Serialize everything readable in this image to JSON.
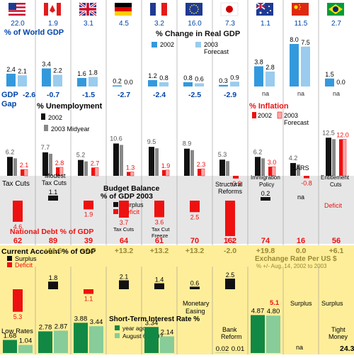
{
  "flags": [
    {
      "country": "United States",
      "icon": "us-flag-icon"
    },
    {
      "country": "Canada",
      "icon": "canada-flag-icon"
    },
    {
      "country": "United Kingdom",
      "icon": "uk-flag-icon"
    },
    {
      "country": "Germany",
      "icon": "germany-flag-icon"
    },
    {
      "country": "France",
      "icon": "france-flag-icon"
    },
    {
      "country": "Euro Area",
      "icon": "eu-flag-icon"
    },
    {
      "country": "Japan",
      "icon": "japan-flag-icon"
    },
    {
      "country": "Australia",
      "icon": "australia-flag-icon"
    },
    {
      "country": "China",
      "icon": "china-flag-icon"
    },
    {
      "country": "Brazil",
      "icon": "brazil-flag-icon"
    }
  ],
  "colors": {
    "blue_dark": "#3399dd",
    "blue_light": "#99ccee",
    "black": "#111111",
    "gray": "#888888",
    "red_dark": "#ee1111",
    "red_light": "#ffaaaa",
    "green_dark": "#118844",
    "green_light": "#88cc99",
    "yellow_bg": "#ffee99",
    "gray_bg": "#e6e6e6",
    "label_blue": "#0044aa",
    "label_red": "#ee1111",
    "label_olive": "#998833"
  },
  "chart_data": [
    {
      "type": "bar",
      "title": "% of World GDP",
      "categories": [
        "United States",
        "Canada",
        "United Kingdom",
        "Germany",
        "France",
        "Euro Area",
        "Japan",
        "Australia",
        "China",
        "Brazil"
      ],
      "values": [
        22.0,
        1.9,
        3.1,
        4.5,
        3.2,
        16.0,
        7.3,
        1.1,
        11.5,
        2.7
      ],
      "labels": [
        "22.0",
        "1.9",
        "3.1",
        "4.5",
        "3.2",
        "16.0",
        "7.3",
        "1.1",
        "11.5",
        "2.7"
      ]
    },
    {
      "type": "bar",
      "title": "% Change in Real GDP",
      "legend": [
        "2002",
        "2003 Forecast"
      ],
      "series": [
        {
          "name": "2002",
          "values": [
            2.4,
            3.4,
            1.6,
            0.2,
            1.2,
            0.8,
            0.3,
            3.8,
            8.0,
            1.5
          ],
          "labels": [
            "2.4",
            "3.4",
            "1.6",
            "0.2",
            "1.2",
            "0.8",
            "0.3",
            "3.8",
            "8.0",
            "1.5"
          ]
        },
        {
          "name": "2003 Forecast",
          "values": [
            2.1,
            2.2,
            1.8,
            0.0,
            0.8,
            0.6,
            0.9,
            2.8,
            7.5,
            0.0
          ],
          "labels": [
            "2.1",
            "2.2",
            "1.8",
            "0.0",
            "0.8",
            "0.6",
            "0.9",
            "2.8",
            "7.5",
            "0.0"
          ]
        }
      ]
    },
    {
      "type": "table",
      "title": "GDP Gap",
      "title_line1": "GDP",
      "title_line2": "Gap",
      "values": [
        "-2.6",
        "-0.7",
        "-1.5",
        "-2.7",
        "-2.4",
        "-2.5",
        "-2.9",
        "na",
        "na",
        "na"
      ]
    },
    {
      "type": "bar",
      "title": "% Unemployment",
      "legend": [
        "2002",
        "2003 Midyear"
      ],
      "series": [
        {
          "name": "2002",
          "values": [
            6.2,
            7.7,
            5.2,
            10.6,
            9.5,
            8.9,
            5.3,
            6.2,
            4.2,
            12.5
          ],
          "labels": [
            "6.2",
            "7.7",
            "5.2",
            "10.6",
            "9.5",
            "8.9",
            "5.3",
            "6.2",
            "4.2",
            "12.5"
          ]
        },
        {
          "name": "2003 Midyear",
          "values": [
            null,
            null,
            null,
            null,
            null,
            null,
            null,
            null,
            null,
            null
          ]
        }
      ]
    },
    {
      "type": "bar",
      "title": "% Inflation",
      "legend": [
        "2002",
        "2003 Forecast"
      ],
      "series": [
        {
          "name": "2002",
          "values": [
            null,
            null,
            null,
            null,
            null,
            null,
            -0.9,
            null,
            -0.8,
            null
          ]
        },
        {
          "name": "2003 Forecast",
          "values": [
            2.1,
            2.8,
            2.7,
            1.3,
            1.9,
            2.3,
            null,
            3.0,
            null,
            12.0
          ],
          "labels": [
            "2.1",
            "2.8",
            "2.7",
            "1.3",
            "1.9",
            "2.3",
            "-0.9",
            "3.0",
            "-0.8",
            "12.0"
          ]
        }
      ]
    },
    {
      "type": "bar",
      "title": "Budget Balance % of GDP 2003",
      "legend": [
        "Surplus",
        "Deficit"
      ],
      "values": [
        -4.6,
        1.1,
        -1.9,
        -3.7,
        -3.6,
        -2.5,
        -7.7,
        0.2,
        null,
        null
      ],
      "labels": [
        "4.6",
        "1.1",
        "1.9",
        "3.7",
        "3.6",
        "2.5",
        "7.7",
        "0.2",
        "na",
        "Deficit"
      ],
      "notes": [
        "Tax Cuts",
        "Modest Tax Cuts",
        "",
        "Tax Cuts",
        "Tax Cut Freeze",
        "",
        "Structural Reforms",
        "Immigration Policy",
        "SARS",
        "Entitlement Cuts"
      ]
    },
    {
      "type": "table",
      "title": "National Debt % of GDP",
      "values": [
        "62",
        "89",
        "39",
        "64",
        "61",
        "70",
        "162",
        "74",
        "16",
        "56"
      ]
    },
    {
      "type": "bar",
      "title": "Current Account % of GDP",
      "legend": [
        "Surplus",
        "Deficit"
      ],
      "values": [
        -5.3,
        1.8,
        -1.1,
        2.1,
        1.4,
        0.6,
        2.5,
        null,
        null,
        null
      ],
      "labels": [
        "5.3",
        "1.8",
        "1.1",
        "2.1",
        "1.4",
        "0.6",
        "2.5",
        "",
        "",
        ""
      ]
    },
    {
      "type": "table",
      "title": "Exchange Rate Per US $",
      "subtitle": "% +/- Aug. 14, 2002 to 2003",
      "values": [
        "",
        "+11.6",
        "+3.7",
        "+13.2",
        "+13.2",
        "+13.2",
        "-2.0",
        "+19.8",
        "0.0",
        "+6.1"
      ]
    },
    {
      "type": "bar",
      "title": "Short-Term Interest Rate %",
      "legend": [
        "year ago",
        "August 6, 2003"
      ],
      "series": [
        {
          "name": "year ago",
          "values": [
            1.68,
            2.78,
            3.88,
            null,
            3.34,
            null,
            0.02,
            4.87,
            null,
            null
          ],
          "labels": [
            "1.68",
            "2.78",
            "3.88",
            "",
            "3.34",
            "",
            "0.02",
            "4.87",
            "",
            ""
          ]
        },
        {
          "name": "August 6, 2003",
          "values": [
            1.04,
            2.87,
            3.44,
            null,
            2.14,
            null,
            0.01,
            4.8,
            null,
            24.3
          ],
          "labels": [
            "1.04",
            "2.87",
            "3.44",
            "",
            "2.14",
            "",
            "0.01",
            "4.80",
            "",
            "24.3"
          ]
        }
      ],
      "value_labels": [
        "5.1"
      ],
      "notes": [
        "Low Rates",
        "",
        "",
        "",
        "Monetary Easing",
        "",
        "Bank Reform",
        "",
        "Surplus",
        "Tight Money"
      ]
    }
  ],
  "ui": {
    "unemployment_legend_2002": "2002",
    "unemployment_legend_2003": "2003 Midyear",
    "gdp_legend_2002": "2002",
    "gdp_legend_2003": "2003",
    "gdp_legend_2003b": "Forecast",
    "inflation_legend_2002": "2002",
    "inflation_legend_2003": "2003",
    "inflation_legend_2003b": "Forecast",
    "budget_title1": "Budget Balance",
    "budget_title2": "% of GDP 2003",
    "budget_surplus": "Surplus",
    "budget_deficit": "Deficit",
    "budget_notes": {
      "tax_cuts_us": "Tax Cuts",
      "modest": "Modest",
      "tax_cuts_ca": "Tax Cuts",
      "tax_cuts_de": "Tax Cuts",
      "tax_cut": "Tax Cut",
      "freeze": "Freeze",
      "structural": "Structural",
      "reforms": "Reforms",
      "immigration": "Immigration",
      "policy": "Policy",
      "sars": "SARS",
      "na_cn": "na",
      "entitlement": "Entitlement",
      "cuts": "Cuts",
      "deficit": "Deficit"
    },
    "na": "na",
    "ca_surplus": "Surplus",
    "ca_deficit": "Deficit",
    "rates_title": "Short-Term Interest Rate %",
    "rates_year_ago": "year ago",
    "rates_aug": "August 6, 2003",
    "rate_note_us": "Low Rates",
    "rate_note_fr1": "Monetary",
    "rate_note_fr2": "Easing",
    "rate_note_jp1": "Bank",
    "rate_note_jp2": "Reform",
    "rate_note_cn": "Surplus",
    "rate_note_br1": "Tight",
    "rate_note_br2": "Money",
    "rate_au_top": "5.1",
    "rate_br_val": "24.3",
    "exchange_title": "Exchange Rate Per US $",
    "exchange_sub": "% +/- Aug. 14, 2002 to 2003"
  }
}
